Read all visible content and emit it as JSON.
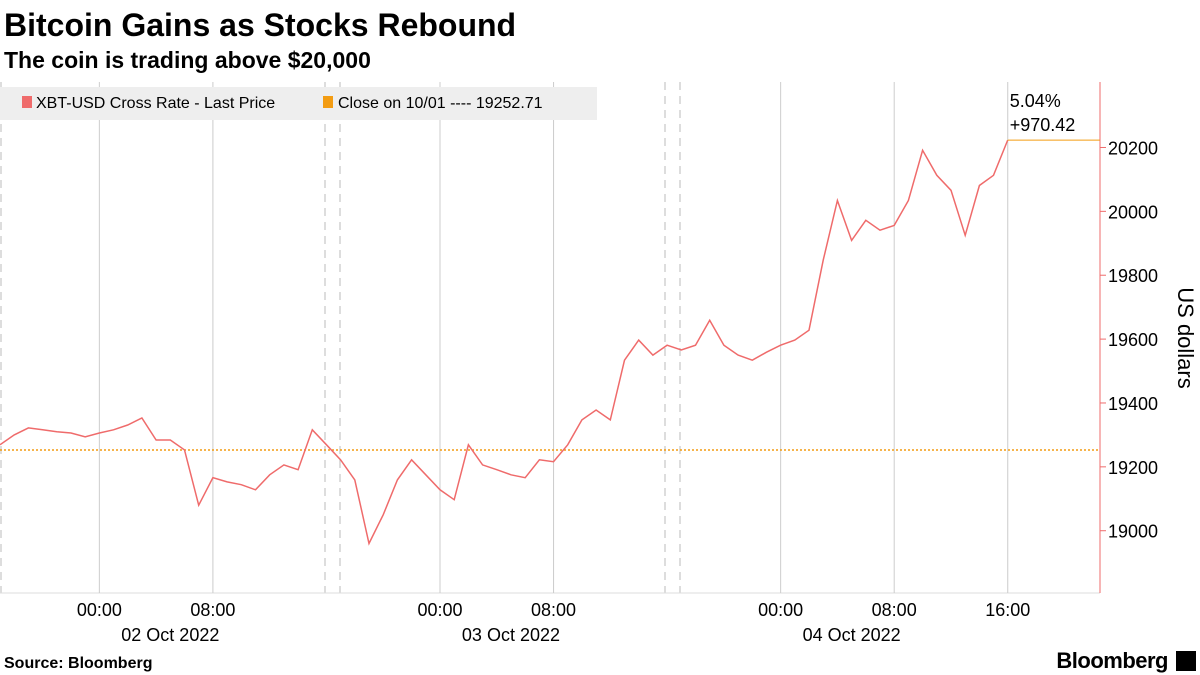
{
  "chart_data": {
    "type": "line",
    "title": "Bitcoin Gains as Stocks Rebound",
    "subtitle": "The coin is trading above $20,000",
    "source": "Source: Bloomberg",
    "brand": "Bloomberg",
    "y_label": "US dollars",
    "x": [
      "2022-10-01 17:00",
      "2022-10-01 18:00",
      "2022-10-01 19:00",
      "2022-10-01 20:00",
      "2022-10-01 21:00",
      "2022-10-01 22:00",
      "2022-10-01 23:00",
      "2022-10-02 00:00",
      "2022-10-02 01:00",
      "2022-10-02 02:00",
      "2022-10-02 03:00",
      "2022-10-02 04:00",
      "2022-10-02 05:00",
      "2022-10-02 06:00",
      "2022-10-02 07:00",
      "2022-10-02 08:00",
      "2022-10-02 09:00",
      "2022-10-02 10:00",
      "2022-10-02 11:00",
      "2022-10-02 12:00",
      "2022-10-02 13:00",
      "2022-10-02 14:00",
      "2022-10-02 15:00",
      "2022-10-02 16:00",
      "2022-10-02 17:00",
      "2022-10-02 18:00",
      "2022-10-02 19:00",
      "2022-10-02 20:00",
      "2022-10-02 21:00",
      "2022-10-02 22:00",
      "2022-10-02 23:00",
      "2022-10-03 00:00",
      "2022-10-03 01:00",
      "2022-10-03 02:00",
      "2022-10-03 03:00",
      "2022-10-03 04:00",
      "2022-10-03 05:00",
      "2022-10-03 06:00",
      "2022-10-03 07:00",
      "2022-10-03 08:00",
      "2022-10-03 09:00",
      "2022-10-03 10:00",
      "2022-10-03 11:00",
      "2022-10-03 12:00",
      "2022-10-03 13:00",
      "2022-10-03 14:00",
      "2022-10-03 15:00",
      "2022-10-03 16:00",
      "2022-10-03 17:00",
      "2022-10-03 18:00",
      "2022-10-03 19:00",
      "2022-10-03 20:00",
      "2022-10-03 21:00",
      "2022-10-03 22:00",
      "2022-10-03 23:00",
      "2022-10-04 00:00",
      "2022-10-04 01:00",
      "2022-10-04 02:00",
      "2022-10-04 03:00",
      "2022-10-04 04:00",
      "2022-10-04 05:00",
      "2022-10-04 06:00",
      "2022-10-04 07:00",
      "2022-10-04 08:00",
      "2022-10-04 09:00",
      "2022-10-04 10:00",
      "2022-10-04 11:00",
      "2022-10-04 12:00",
      "2022-10-04 13:00",
      "2022-10-04 14:00",
      "2022-10-04 15:00",
      "2022-10-04 16:00"
    ],
    "series": [
      {
        "name": "XBT-USD Cross Rate - Last Price",
        "color": "#ef6b6b",
        "values": [
          19269,
          19300,
          19322,
          19316,
          19310,
          19306,
          19294,
          19306,
          19316,
          19331,
          19353,
          19284,
          19284,
          19253,
          19080,
          19166,
          19153,
          19144,
          19128,
          19175,
          19206,
          19191,
          19316,
          19269,
          19222,
          19159,
          18960,
          19050,
          19159,
          19222,
          19175,
          19128,
          19097,
          19269,
          19206,
          19191,
          19175,
          19166,
          19222,
          19216,
          19269,
          19347,
          19378,
          19347,
          19534,
          19597,
          19550,
          19581,
          19566,
          19581,
          19659,
          19581,
          19550,
          19534,
          19559,
          19581,
          19597,
          19628,
          19847,
          20034,
          19909,
          19972,
          19941,
          19956,
          20034,
          20191,
          20113,
          20066,
          19925,
          20081,
          20113,
          20223.13
        ]
      }
    ],
    "reference_line": {
      "name": "Close on 10/01 ---- 19252.71",
      "value": 19252.71,
      "color": "#f39c12"
    },
    "annotations": [
      "5.04%",
      "+970.42"
    ],
    "xlim": [
      "2022-10-01 17:00",
      "2022-10-04 22:30"
    ],
    "xticks": [
      {
        "value": "2022-10-02 00:00",
        "label": "00:00"
      },
      {
        "value": "2022-10-02 08:00",
        "label": "08:00"
      },
      {
        "value": "2022-10-03 00:00",
        "label": "00:00"
      },
      {
        "value": "2022-10-03 08:00",
        "label": "08:00"
      },
      {
        "value": "2022-10-04 00:00",
        "label": "00:00"
      },
      {
        "value": "2022-10-04 08:00",
        "label": "08:00"
      },
      {
        "value": "2022-10-04 16:00",
        "label": "16:00"
      }
    ],
    "date_labels": [
      {
        "value": "2022-10-02 05:00",
        "label": "02 Oct 2022"
      },
      {
        "value": "2022-10-03 05:00",
        "label": "03 Oct 2022"
      },
      {
        "value": "2022-10-04 05:00",
        "label": "04 Oct 2022"
      }
    ],
    "ylim": [
      18805,
      20405
    ],
    "yticks": [
      19000,
      19200,
      19400,
      19600,
      19800,
      20000,
      20200
    ]
  }
}
